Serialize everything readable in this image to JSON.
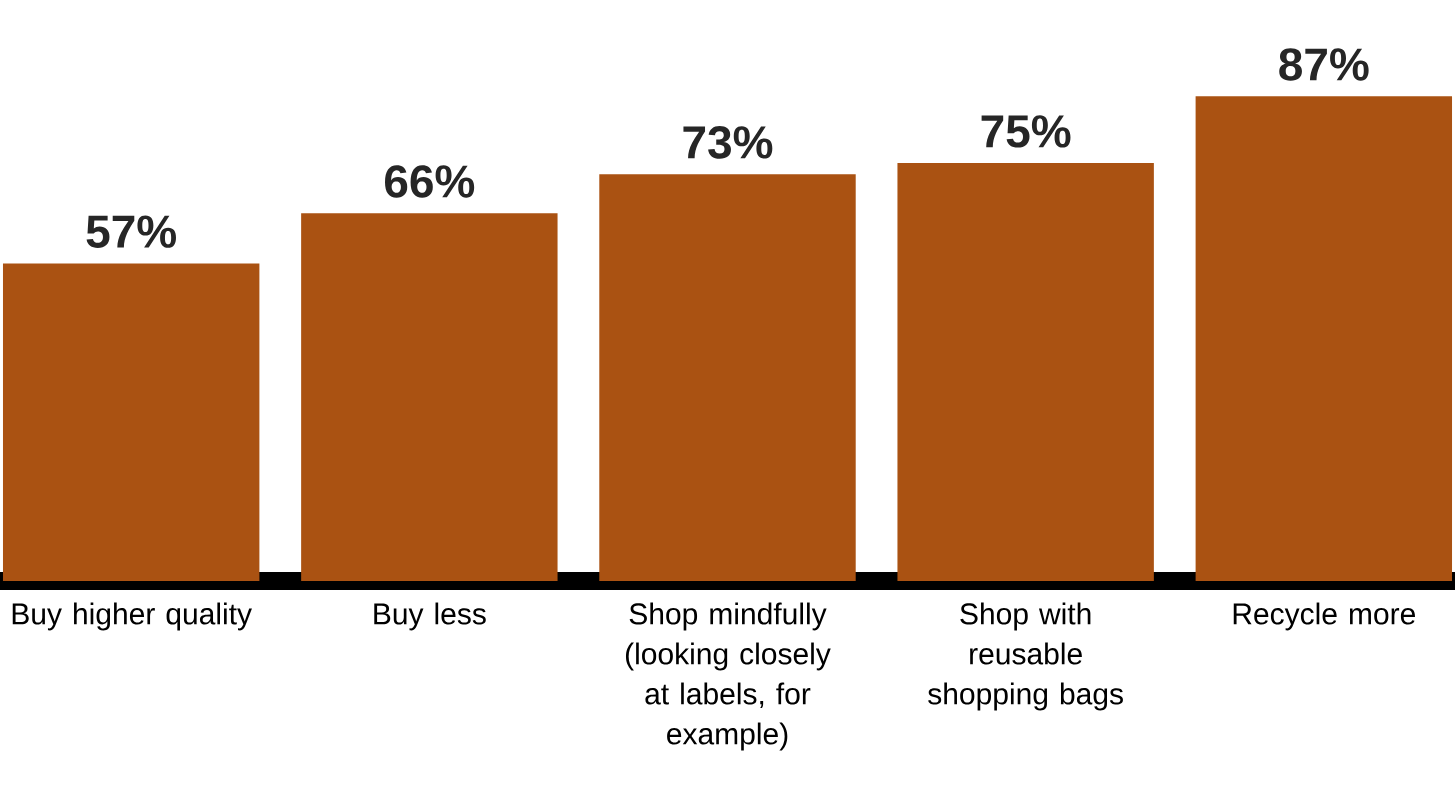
{
  "chart_data": {
    "type": "bar",
    "categories": [
      "Buy higher quality",
      "Buy less",
      "Shop mindfully (looking closely at labels, for example)",
      "Shop with reusable shopping bags",
      "Recycle more"
    ],
    "values": [
      57,
      66,
      73,
      75,
      87
    ],
    "value_labels": [
      "57%",
      "66%",
      "73%",
      "75%",
      "87%"
    ],
    "color": "#aa5212"
  }
}
